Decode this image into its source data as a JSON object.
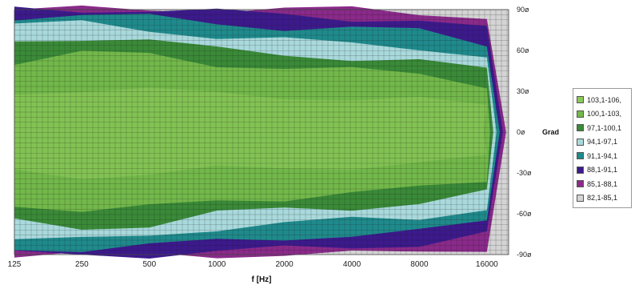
{
  "chart_data": {
    "type": "heatmap",
    "xlabel": "f [Hz]",
    "ylabel": "Grad",
    "x_scale": "log2",
    "x_ticks": [
      "125",
      "250",
      "500",
      "1000",
      "2000",
      "4000",
      "8000",
      "16000"
    ],
    "y_ticks": [
      "90ø",
      "60ø",
      "30ø",
      "0ø",
      "-30ø",
      "-60ø",
      "-90ø"
    ],
    "xlim": [
      125,
      20000
    ],
    "ylim": [
      -90,
      90
    ],
    "grid": true,
    "legend_position": "right",
    "legend": [
      {
        "label": "103,1-106,",
        "color": "#8dc85a"
      },
      {
        "label": "100,1-103,",
        "color": "#72b84a"
      },
      {
        "label": "97,1-100,1",
        "color": "#3a8a38"
      },
      {
        "label": "94,1-97,1",
        "color": "#a9d9dc"
      },
      {
        "label": "91,1-94,1",
        "color": "#1f8a8c"
      },
      {
        "label": "88,1-91,1",
        "color": "#3c1a8c"
      },
      {
        "label": "85,1-88,1",
        "color": "#8a2a8a"
      },
      {
        "label": "82,1-85,1",
        "color": "#d4d4d4"
      }
    ],
    "upper_contour_angles_deg": {
      "frequency_hz": [
        125,
        250,
        500,
        1000,
        2000,
        4000,
        8000,
        16000
      ],
      "level_97_boundary": [
        52,
        58,
        56,
        50,
        48,
        45,
        42,
        35
      ],
      "level_94_boundary": [
        66,
        70,
        68,
        60,
        57,
        55,
        52,
        45
      ],
      "level_91_boundary": [
        78,
        80,
        76,
        70,
        67,
        65,
        63,
        55
      ],
      "level_88_boundary": [
        85,
        86,
        84,
        80,
        77,
        76,
        74,
        65
      ],
      "level_85_boundary": [
        90,
        90,
        90,
        88,
        86,
        84,
        82,
        75
      ],
      "level_82_boundary": [
        90,
        90,
        90,
        90,
        90,
        90,
        88,
        85
      ]
    }
  }
}
